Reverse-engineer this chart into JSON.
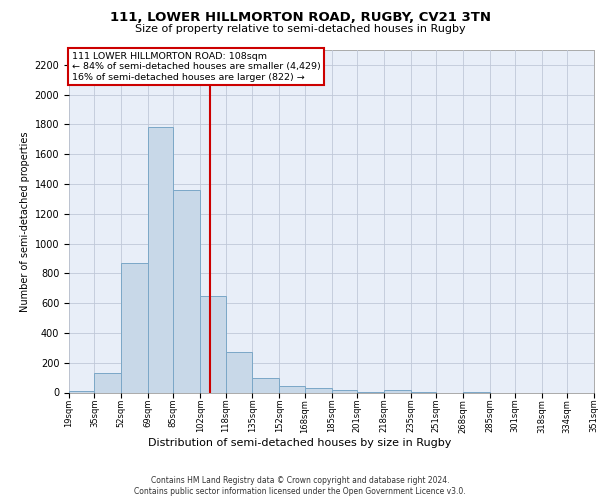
{
  "title1": "111, LOWER HILLMORTON ROAD, RUGBY, CV21 3TN",
  "title2": "Size of property relative to semi-detached houses in Rugby",
  "xlabel": "Distribution of semi-detached houses by size in Rugby",
  "ylabel": "Number of semi-detached properties",
  "footnote1": "Contains HM Land Registry data © Crown copyright and database right 2024.",
  "footnote2": "Contains public sector information licensed under the Open Government Licence v3.0.",
  "annotation_line1": "111 LOWER HILLMORTON ROAD: 108sqm",
  "annotation_line2": "← 84% of semi-detached houses are smaller (4,429)",
  "annotation_line3": "16% of semi-detached houses are larger (822) →",
  "property_size": 108,
  "bin_edges": [
    19,
    35,
    52,
    69,
    85,
    102,
    118,
    135,
    152,
    168,
    185,
    201,
    218,
    235,
    251,
    268,
    285,
    301,
    318,
    334,
    351
  ],
  "bar_heights": [
    10,
    130,
    870,
    1780,
    1360,
    650,
    270,
    100,
    45,
    30,
    15,
    5,
    15,
    5,
    0,
    5,
    0,
    0,
    0,
    0
  ],
  "bar_color": "#c8d8e8",
  "bar_edge_color": "#7ba7c7",
  "vline_color": "#cc0000",
  "vline_x": 108,
  "annotation_box_color": "#cc0000",
  "background_color": "#ffffff",
  "plot_bg_color": "#e8eef8",
  "grid_color": "#c0c8d8",
  "ylim": [
    0,
    2300
  ],
  "yticks": [
    0,
    200,
    400,
    600,
    800,
    1000,
    1200,
    1400,
    1600,
    1800,
    2000,
    2200
  ],
  "title1_fontsize": 9.5,
  "title2_fontsize": 8.0,
  "ylabel_fontsize": 7.0,
  "ytick_fontsize": 7.0,
  "xtick_fontsize": 6.0,
  "xlabel_fontsize": 8.0,
  "footnote_fontsize": 5.5,
  "annotation_fontsize": 6.8
}
